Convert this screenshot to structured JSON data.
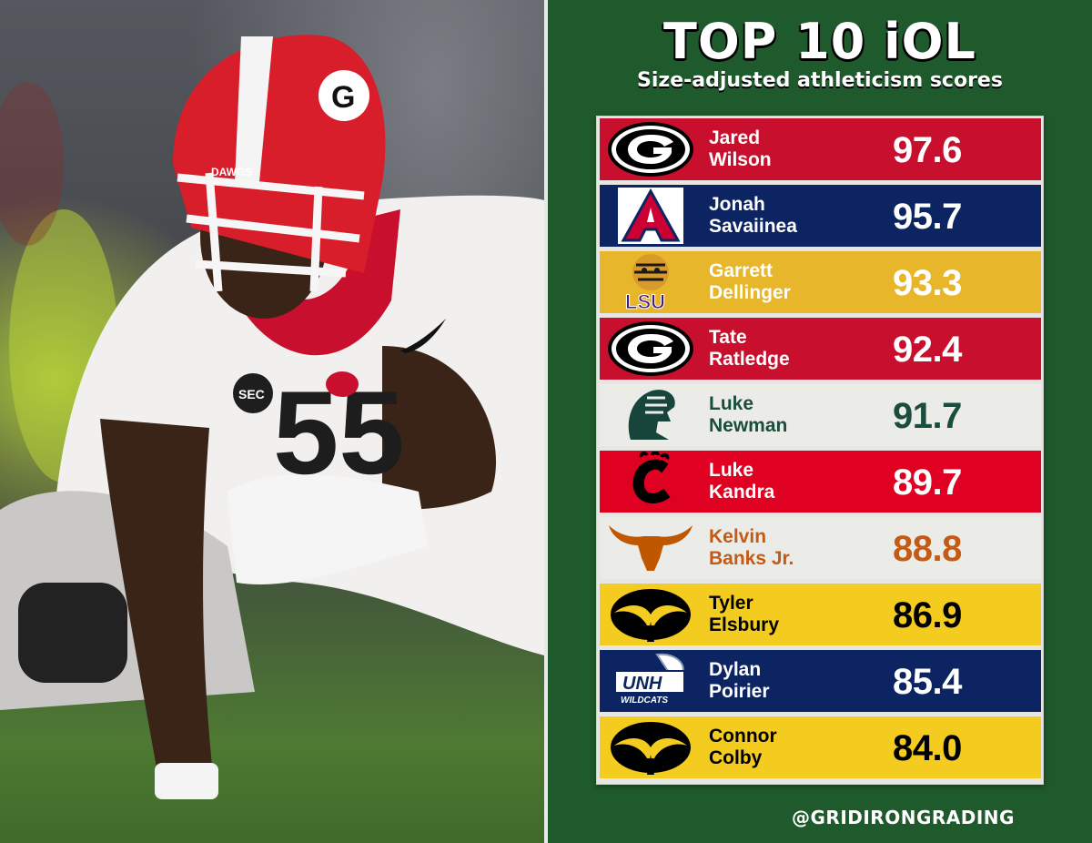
{
  "header": {
    "title": "TOP 10 iOL",
    "subtitle": "Size-adjusted athleticism scores"
  },
  "photo": {
    "jersey_number": "55",
    "helmet_label": "DAWGS"
  },
  "rankings": [
    {
      "first": "Jared",
      "last": "Wilson",
      "score": "97.6",
      "logo": "georgia-logo",
      "bg": "#c8102e",
      "fg": "#ffffff"
    },
    {
      "first": "Jonah",
      "last": "Savaiinea",
      "score": "95.7",
      "logo": "arizona-logo",
      "bg": "#0c2461",
      "fg": "#ffffff"
    },
    {
      "first": "Garrett",
      "last": "Dellinger",
      "score": "93.3",
      "logo": "lsu-logo",
      "bg": "#e8b62a",
      "fg": "#ffffff"
    },
    {
      "first": "Tate",
      "last": "Ratledge",
      "score": "92.4",
      "logo": "georgia-logo",
      "bg": "#c8102e",
      "fg": "#ffffff"
    },
    {
      "first": "Luke",
      "last": "Newman",
      "score": "91.7",
      "logo": "michigan-state-logo",
      "bg": "#ebebe8",
      "fg": "#1b4d3e"
    },
    {
      "first": "Luke",
      "last": "Kandra",
      "score": "89.7",
      "logo": "cincinnati-logo",
      "bg": "#e00122",
      "fg": "#ffffff"
    },
    {
      "first": "Kelvin",
      "last": "Banks Jr.",
      "score": "88.8",
      "logo": "texas-logo",
      "bg": "#ebebe8",
      "fg": "#c45a14"
    },
    {
      "first": "Tyler",
      "last": "Elsbury",
      "score": "86.9",
      "logo": "iowa-logo",
      "bg": "#f3cc1f",
      "fg": "#000000"
    },
    {
      "first": "Dylan",
      "last": "Poirier",
      "score": "85.4",
      "logo": "unh-logo",
      "bg": "#0c2461",
      "fg": "#ffffff"
    },
    {
      "first": "Connor",
      "last": "Colby",
      "score": "84.0",
      "logo": "iowa-logo",
      "bg": "#f3cc1f",
      "fg": "#000000"
    }
  ],
  "logo_text": {
    "lsu": "LSU",
    "unh": "UNH",
    "unh_sub": "WILDCATS"
  },
  "colors": {
    "background": "#1f5a2c"
  },
  "footer": {
    "handle": "@GRIDIRONGRADING"
  }
}
